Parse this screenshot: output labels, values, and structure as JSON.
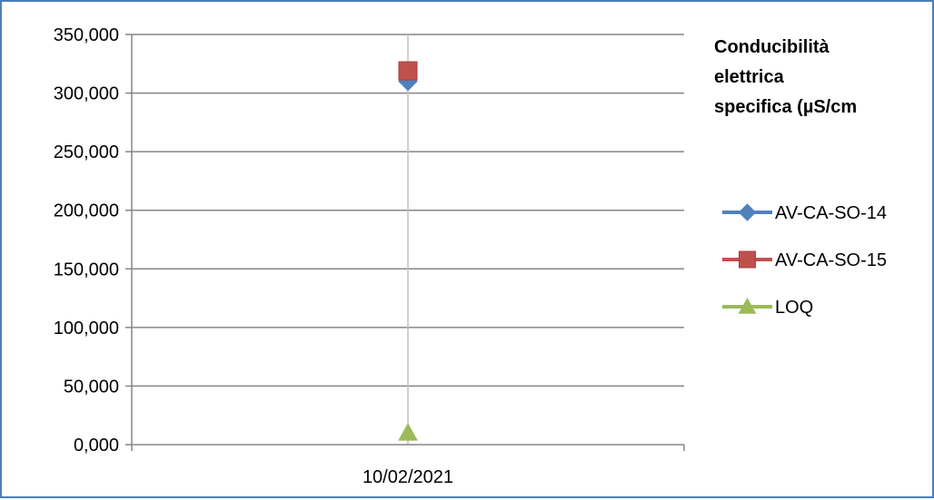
{
  "chart_data": {
    "type": "line",
    "title_lines": [
      "Conducibilità",
      "elettrica",
      "specifica (µS/cm"
    ],
    "x": [
      "10/02/2021"
    ],
    "ylim": [
      0,
      350
    ],
    "ytick_values": [
      0,
      50,
      100,
      150,
      200,
      250,
      300,
      350
    ],
    "ytick_labels": [
      "0,000",
      "50,000",
      "100,000",
      "150,000",
      "200,000",
      "250,000",
      "300,000",
      "350,000"
    ],
    "grid": true,
    "legend_position": "right",
    "series": [
      {
        "name": "AV-CA-SO-14",
        "values": [
          310
        ],
        "color": "#4f81bd",
        "marker": "diamond"
      },
      {
        "name": "AV-CA-SO-15",
        "values": [
          319
        ],
        "color": "#c0504d",
        "marker": "square"
      },
      {
        "name": "LOQ",
        "values": [
          10
        ],
        "color": "#9bbb59",
        "marker": "triangle"
      }
    ]
  }
}
